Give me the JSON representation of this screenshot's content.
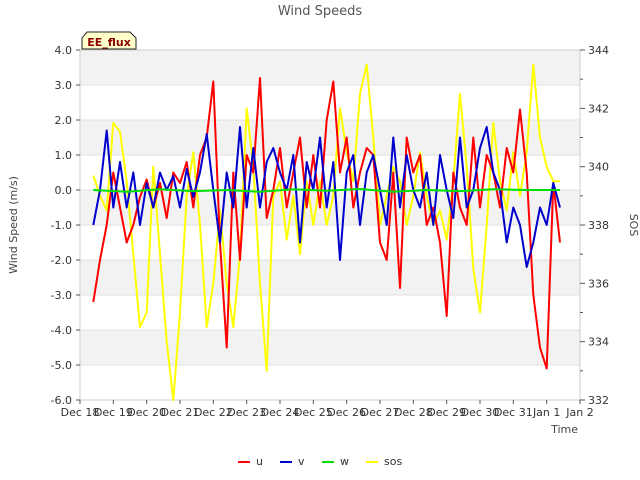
{
  "chart_data": {
    "type": "line",
    "title": "Wind Speeds",
    "xlabel": "Time",
    "ylabel": "Wind Speed (m/s)",
    "y2label": "SOS",
    "badge": "EE_flux",
    "xlim": [
      0,
      15
    ],
    "ylim": [
      -6.0,
      4.0
    ],
    "y2lim": [
      332,
      344
    ],
    "x_ticks": [
      0,
      1,
      2,
      3,
      4,
      5,
      6,
      7,
      8,
      9,
      10,
      11,
      12,
      13,
      14,
      15
    ],
    "x_tick_labels": [
      "Dec 18",
      "Dec 19",
      "Dec 20",
      "Dec 21",
      "Dec 22",
      "Dec 23",
      "Dec 24",
      "Dec 25",
      "Dec 26",
      "Dec 27",
      "Dec 28",
      "Dec 29",
      "Dec 30",
      "Dec 31",
      "Jan 1",
      "Jan 2"
    ],
    "y_ticks": [
      -6,
      -5,
      -4,
      -3,
      -2,
      -1,
      0,
      1,
      2,
      3,
      4
    ],
    "y_tick_labels": [
      "-6.0",
      "-5.0",
      "-4.0",
      "-3.0",
      "-2.0",
      "-1.0",
      "0.0",
      "1.0",
      "2.0",
      "3.0",
      "4.0"
    ],
    "y2_ticks": [
      332,
      334,
      336,
      338,
      340,
      342,
      344
    ],
    "y2_tick_labels": [
      "332",
      "334",
      "336",
      "338",
      "340",
      "342",
      "344"
    ],
    "grid": true,
    "legend_position": "bottom",
    "series": [
      {
        "name": "u",
        "color": "#ff0000",
        "axis": "left",
        "x": [
          0.4,
          0.6,
          0.8,
          1.0,
          1.2,
          1.4,
          1.6,
          1.8,
          2.0,
          2.2,
          2.4,
          2.6,
          2.8,
          3.0,
          3.2,
          3.4,
          3.6,
          3.8,
          4.0,
          4.2,
          4.4,
          4.6,
          4.8,
          5.0,
          5.2,
          5.4,
          5.6,
          5.8,
          6.0,
          6.2,
          6.4,
          6.6,
          6.8,
          7.0,
          7.2,
          7.4,
          7.6,
          7.8,
          8.0,
          8.2,
          8.4,
          8.6,
          8.8,
          9.0,
          9.2,
          9.4,
          9.6,
          9.8,
          10.0,
          10.2,
          10.4,
          10.6,
          10.8,
          11.0,
          11.2,
          11.4,
          11.6,
          11.8,
          12.0,
          12.2,
          12.4,
          12.6,
          12.8,
          13.0,
          13.2,
          13.4,
          13.6,
          13.8,
          14.0,
          14.2,
          14.4
        ],
        "y": [
          -3.2,
          -2.0,
          -1.0,
          0.5,
          -0.5,
          -1.5,
          -1.0,
          -0.2,
          0.3,
          -0.5,
          0.2,
          -0.8,
          0.5,
          0.2,
          0.8,
          -0.5,
          1.0,
          1.5,
          3.1,
          -1.5,
          -4.5,
          0.5,
          -2.0,
          1.0,
          0.5,
          3.2,
          -0.8,
          0.0,
          1.2,
          -0.5,
          0.5,
          1.5,
          -0.5,
          1.0,
          -0.5,
          2.0,
          3.1,
          0.5,
          1.5,
          -0.5,
          0.5,
          1.2,
          1.0,
          -1.5,
          -2.0,
          0.5,
          -2.8,
          1.5,
          0.5,
          1.0,
          -1.0,
          -0.5,
          -1.5,
          -3.6,
          0.5,
          -0.5,
          -1.0,
          1.5,
          -0.5,
          1.0,
          0.5,
          -0.5,
          1.2,
          0.5,
          2.3,
          0.5,
          -3.0,
          -4.5,
          -5.1,
          0.2,
          -1.5
        ]
      },
      {
        "name": "v",
        "color": "#0000cc",
        "axis": "left",
        "x": [
          0.4,
          0.6,
          0.8,
          1.0,
          1.2,
          1.4,
          1.6,
          1.8,
          2.0,
          2.2,
          2.4,
          2.6,
          2.8,
          3.0,
          3.2,
          3.4,
          3.6,
          3.8,
          4.0,
          4.2,
          4.4,
          4.6,
          4.8,
          5.0,
          5.2,
          5.4,
          5.6,
          5.8,
          6.0,
          6.2,
          6.4,
          6.6,
          6.8,
          7.0,
          7.2,
          7.4,
          7.6,
          7.8,
          8.0,
          8.2,
          8.4,
          8.6,
          8.8,
          9.0,
          9.2,
          9.4,
          9.6,
          9.8,
          10.0,
          10.2,
          10.4,
          10.6,
          10.8,
          11.0,
          11.2,
          11.4,
          11.6,
          11.8,
          12.0,
          12.2,
          12.4,
          12.6,
          12.8,
          13.0,
          13.2,
          13.4,
          13.6,
          13.8,
          14.0,
          14.2,
          14.4
        ],
        "y": [
          -1.0,
          0.0,
          1.7,
          -0.5,
          0.8,
          -0.5,
          0.5,
          -1.0,
          0.2,
          -0.5,
          0.5,
          0.0,
          0.4,
          -0.5,
          0.6,
          -0.2,
          0.5,
          1.6,
          0.0,
          -1.5,
          0.5,
          -0.5,
          1.8,
          -0.5,
          1.2,
          -0.5,
          0.8,
          1.2,
          0.5,
          0.0,
          1.0,
          -1.5,
          0.8,
          0.0,
          1.5,
          -0.5,
          0.8,
          -2.0,
          0.5,
          1.0,
          -1.0,
          0.5,
          1.0,
          0.0,
          -1.0,
          1.5,
          -0.5,
          1.0,
          0.0,
          -0.5,
          0.5,
          -1.0,
          1.0,
          0.0,
          -0.8,
          1.5,
          -0.5,
          0.0,
          1.2,
          1.8,
          0.5,
          0.0,
          -1.5,
          -0.5,
          -1.0,
          -2.2,
          -1.5,
          -0.5,
          -1.0,
          0.2,
          -0.5
        ]
      },
      {
        "name": "w",
        "color": "#00dd00",
        "axis": "left",
        "x": [
          0.4,
          1.4,
          2.4,
          3.4,
          4.4,
          5.4,
          6.4,
          7.4,
          8.4,
          9.4,
          10.4,
          11.4,
          12.4,
          13.4,
          14.4
        ],
        "y": [
          0.0,
          -0.05,
          0.02,
          -0.03,
          0.0,
          -0.05,
          0.02,
          -0.02,
          0.03,
          -0.05,
          0.0,
          -0.03,
          0.02,
          0.0,
          0.0
        ]
      },
      {
        "name": "sos",
        "color": "#ffff00",
        "axis": "right",
        "x": [
          0.4,
          0.6,
          0.8,
          1.0,
          1.2,
          1.4,
          1.6,
          1.8,
          2.0,
          2.2,
          2.4,
          2.6,
          2.8,
          3.0,
          3.2,
          3.4,
          3.6,
          3.8,
          4.0,
          4.2,
          4.4,
          4.6,
          4.8,
          5.0,
          5.2,
          5.4,
          5.6,
          5.8,
          6.0,
          6.2,
          6.4,
          6.6,
          6.8,
          7.0,
          7.2,
          7.4,
          7.6,
          7.8,
          8.0,
          8.2,
          8.4,
          8.6,
          8.8,
          9.0,
          9.2,
          9.4,
          9.6,
          9.8,
          10.0,
          10.2,
          10.4,
          10.6,
          10.8,
          11.0,
          11.2,
          11.4,
          11.6,
          11.8,
          12.0,
          12.2,
          12.4,
          12.6,
          12.8,
          13.0,
          13.2,
          13.4,
          13.6,
          13.8,
          14.0,
          14.2,
          14.4
        ],
        "y": [
          339.7,
          339.0,
          338.5,
          341.5,
          341.2,
          339.5,
          337.0,
          334.5,
          335.0,
          340.0,
          337.0,
          334.0,
          332.0,
          335.0,
          339.0,
          340.5,
          338.0,
          334.5,
          336.0,
          338.5,
          336.0,
          334.5,
          337.0,
          342.0,
          340.0,
          336.0,
          333.0,
          339.0,
          339.5,
          337.5,
          339.0,
          337.0,
          339.5,
          338.0,
          339.5,
          338.0,
          339.0,
          342.0,
          340.5,
          339.5,
          342.5,
          343.5,
          341.0,
          338.0,
          339.0,
          340.0,
          339.5,
          338.0,
          339.0,
          340.5,
          339.0,
          338.0,
          338.5,
          337.5,
          339.5,
          342.5,
          340.0,
          336.5,
          335.0,
          338.0,
          341.5,
          339.5,
          338.5,
          340.5,
          339.0,
          340.5,
          343.5,
          341.0,
          340.0,
          339.5,
          339.5
        ]
      }
    ]
  }
}
